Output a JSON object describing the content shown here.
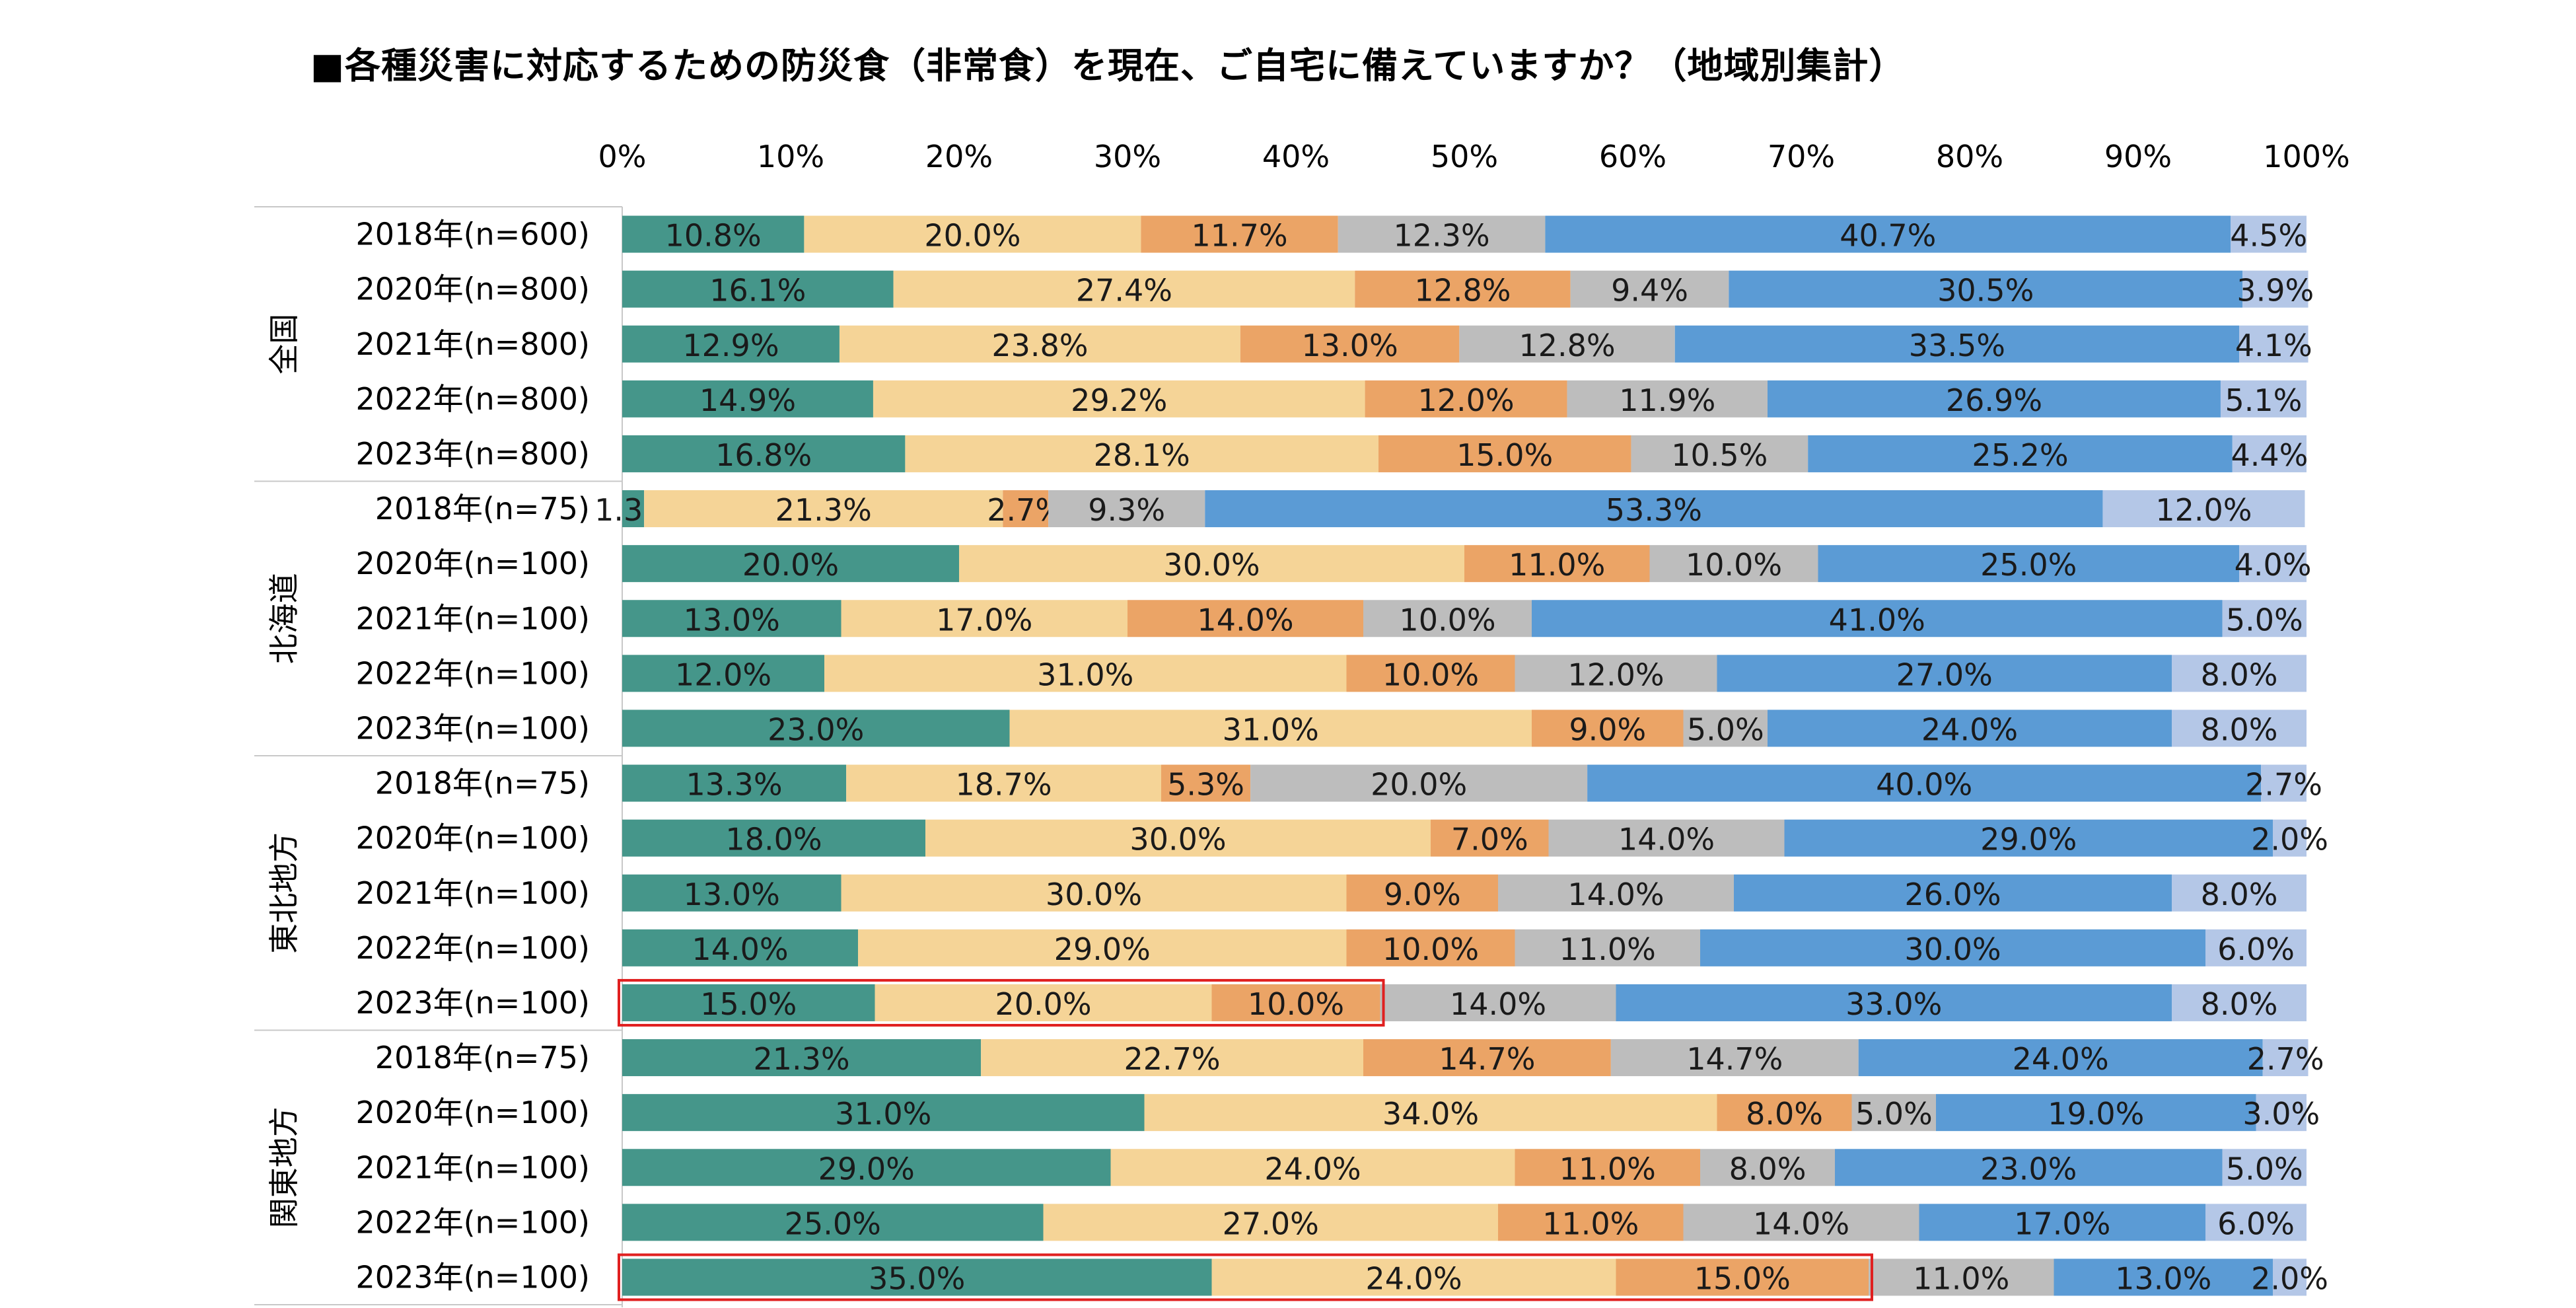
{
  "chart_data": {
    "type": "bar",
    "orientation": "horizontal",
    "stacked": true,
    "title": "■各種災害に対応するための防災食（非常食）を現在、ご自宅に備えていますか？（地域別集計）",
    "xlim": [
      0,
      100
    ],
    "x_ticks": [
      "0%",
      "10%",
      "20%",
      "30%",
      "40%",
      "50%",
      "60%",
      "70%",
      "80%",
      "90%",
      "100%"
    ],
    "segment_colors": [
      "#45968A",
      "#F5D497",
      "#EBA466",
      "#BDBDBD",
      "#5B9BD5",
      "#B4C7E7"
    ],
    "groups": [
      {
        "name": "全国",
        "rows": [
          {
            "label": "2018年(n=600)",
            "values": [
              10.8,
              20.0,
              11.7,
              12.3,
              40.7,
              4.5
            ],
            "value_labels": [
              "10.8%",
              "20.0%",
              "11.7%",
              "12.3%",
              "40.7%",
              "4.5%"
            ]
          },
          {
            "label": "2020年(n=800)",
            "values": [
              16.1,
              27.4,
              12.8,
              9.4,
              30.5,
              3.9
            ],
            "value_labels": [
              "16.1%",
              "27.4%",
              "12.8%",
              "9.4%",
              "30.5%",
              "3.9%"
            ]
          },
          {
            "label": "2021年(n=800)",
            "values": [
              12.9,
              23.8,
              13.0,
              12.8,
              33.5,
              4.1
            ],
            "value_labels": [
              "12.9%",
              "23.8%",
              "13.0%",
              "12.8%",
              "33.5%",
              "4.1%"
            ]
          },
          {
            "label": "2022年(n=800)",
            "values": [
              14.9,
              29.2,
              12.0,
              11.9,
              26.9,
              5.1
            ],
            "value_labels": [
              "14.9%",
              "29.2%",
              "12.0%",
              "11.9%",
              "26.9%",
              "5.1%"
            ]
          },
          {
            "label": "2023年(n=800)",
            "values": [
              16.8,
              28.1,
              15.0,
              10.5,
              25.2,
              4.4
            ],
            "value_labels": [
              "16.8%",
              "28.1%",
              "15.0%",
              "10.5%",
              "25.2%",
              "4.4%"
            ]
          }
        ]
      },
      {
        "name": "北海道",
        "rows": [
          {
            "label": "2018年(n=75)",
            "values": [
              1.3,
              21.3,
              2.7,
              9.3,
              53.3,
              12.0
            ],
            "value_labels": [
              "1.3%",
              "21.3%",
              "2.7%",
              "9.3%",
              "53.3%",
              "12.0%"
            ]
          },
          {
            "label": "2020年(n=100)",
            "values": [
              20.0,
              30.0,
              11.0,
              10.0,
              25.0,
              4.0
            ],
            "value_labels": [
              "20.0%",
              "30.0%",
              "11.0%",
              "10.0%",
              "25.0%",
              "4.0%"
            ]
          },
          {
            "label": "2021年(n=100)",
            "values": [
              13.0,
              17.0,
              14.0,
              10.0,
              41.0,
              5.0
            ],
            "value_labels": [
              "13.0%",
              "17.0%",
              "14.0%",
              "10.0%",
              "41.0%",
              "5.0%"
            ]
          },
          {
            "label": "2022年(n=100)",
            "values": [
              12.0,
              31.0,
              10.0,
              12.0,
              27.0,
              8.0
            ],
            "value_labels": [
              "12.0%",
              "31.0%",
              "10.0%",
              "12.0%",
              "27.0%",
              "8.0%"
            ]
          },
          {
            "label": "2023年(n=100)",
            "values": [
              23.0,
              31.0,
              9.0,
              5.0,
              24.0,
              8.0
            ],
            "value_labels": [
              "23.0%",
              "31.0%",
              "9.0%",
              "5.0%",
              "24.0%",
              "8.0%"
            ]
          }
        ]
      },
      {
        "name": "東北地方",
        "rows": [
          {
            "label": "2018年(n=75)",
            "values": [
              13.3,
              18.7,
              5.3,
              20.0,
              40.0,
              2.7
            ],
            "value_labels": [
              "13.3%",
              "18.7%",
              "5.3%",
              "20.0%",
              "40.0%",
              "2.7%"
            ]
          },
          {
            "label": "2020年(n=100)",
            "values": [
              18.0,
              30.0,
              7.0,
              14.0,
              29.0,
              2.0
            ],
            "value_labels": [
              "18.0%",
              "30.0%",
              "7.0%",
              "14.0%",
              "29.0%",
              "2.0%"
            ]
          },
          {
            "label": "2021年(n=100)",
            "values": [
              13.0,
              30.0,
              9.0,
              14.0,
              26.0,
              8.0
            ],
            "value_labels": [
              "13.0%",
              "30.0%",
              "9.0%",
              "14.0%",
              "26.0%",
              "8.0%"
            ]
          },
          {
            "label": "2022年(n=100)",
            "values": [
              14.0,
              29.0,
              10.0,
              11.0,
              30.0,
              6.0
            ],
            "value_labels": [
              "14.0%",
              "29.0%",
              "10.0%",
              "11.0%",
              "30.0%",
              "6.0%"
            ]
          },
          {
            "label": "2023年(n=100)",
            "values": [
              15.0,
              20.0,
              10.0,
              14.0,
              33.0,
              8.0
            ],
            "value_labels": [
              "15.0%",
              "20.0%",
              "10.0%",
              "14.0%",
              "33.0%",
              "8.0%"
            ],
            "highlight_first_segments": 3
          }
        ]
      },
      {
        "name": "関東地方",
        "rows": [
          {
            "label": "2018年(n=75)",
            "values": [
              21.3,
              22.7,
              14.7,
              14.7,
              24.0,
              2.7
            ],
            "value_labels": [
              "21.3%",
              "22.7%",
              "14.7%",
              "14.7%",
              "24.0%",
              "2.7%"
            ]
          },
          {
            "label": "2020年(n=100)",
            "values": [
              31.0,
              34.0,
              8.0,
              5.0,
              19.0,
              3.0
            ],
            "value_labels": [
              "31.0%",
              "34.0%",
              "8.0%",
              "5.0%",
              "19.0%",
              "3.0%"
            ]
          },
          {
            "label": "2021年(n=100)",
            "values": [
              29.0,
              24.0,
              11.0,
              8.0,
              23.0,
              5.0
            ],
            "value_labels": [
              "29.0%",
              "24.0%",
              "11.0%",
              "8.0%",
              "23.0%",
              "5.0%"
            ]
          },
          {
            "label": "2022年(n=100)",
            "values": [
              25.0,
              27.0,
              11.0,
              14.0,
              17.0,
              6.0
            ],
            "value_labels": [
              "25.0%",
              "27.0%",
              "11.0%",
              "14.0%",
              "17.0%",
              "6.0%"
            ]
          },
          {
            "label": "2023年(n=100)",
            "values": [
              35.0,
              24.0,
              15.0,
              11.0,
              13.0,
              2.0
            ],
            "value_labels": [
              "35.0%",
              "24.0%",
              "15.0%",
              "11.0%",
              "13.0%",
              "2.0%"
            ],
            "highlight_first_segments": 3
          }
        ]
      }
    ],
    "highlight_color": "#E02020"
  }
}
